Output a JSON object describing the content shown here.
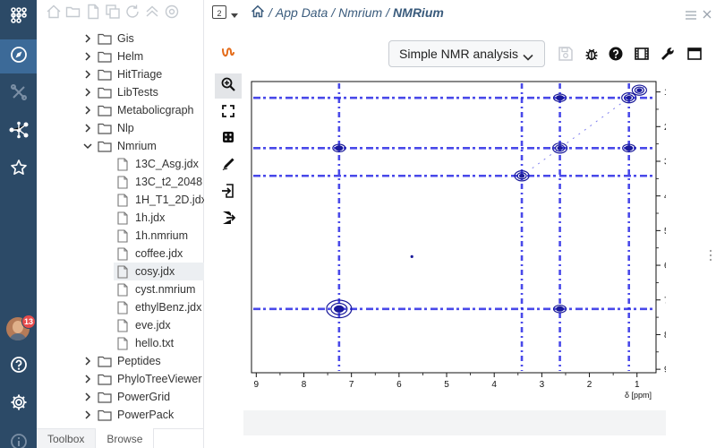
{
  "rail": {
    "items": [
      {
        "icon": "grid-dots-icon",
        "active": false
      },
      {
        "icon": "compass-icon",
        "active": true
      },
      {
        "icon": "tools-icon",
        "active": false
      },
      {
        "icon": "network-icon",
        "active": false
      },
      {
        "icon": "star-icon",
        "active": false
      }
    ],
    "badge": "13",
    "bottom": [
      {
        "icon": "help-icon"
      },
      {
        "icon": "gear-icon"
      },
      {
        "icon": "info-icon"
      }
    ]
  },
  "browse": {
    "tree": [
      {
        "label": "Gis",
        "type": "folder",
        "expanded": false
      },
      {
        "label": "Helm",
        "type": "folder",
        "expanded": false
      },
      {
        "label": "HitTriage",
        "type": "folder",
        "expanded": false
      },
      {
        "label": "LibTests",
        "type": "folder",
        "expanded": false
      },
      {
        "label": "Metabolicgraph",
        "type": "folder",
        "expanded": false
      },
      {
        "label": "Nlp",
        "type": "folder",
        "expanded": false
      },
      {
        "label": "Nmrium",
        "type": "folder",
        "expanded": true
      },
      {
        "label": "13C_Asg.jdx",
        "type": "file"
      },
      {
        "label": "13C_t2_2048",
        "type": "file"
      },
      {
        "label": "1H_T1_2D.jdx",
        "type": "file"
      },
      {
        "label": "1h.jdx",
        "type": "file"
      },
      {
        "label": "1h.nmrium",
        "type": "file"
      },
      {
        "label": "coffee.jdx",
        "type": "file"
      },
      {
        "label": "cosy.jdx",
        "type": "file",
        "selected": true
      },
      {
        "label": "cyst.nmrium",
        "type": "file"
      },
      {
        "label": "ethylBenz.jdx",
        "type": "file"
      },
      {
        "label": "eve.jdx",
        "type": "file"
      },
      {
        "label": "hello.txt",
        "type": "file"
      },
      {
        "label": "Peptides",
        "type": "folder",
        "expanded": false
      },
      {
        "label": "PhyloTreeViewer",
        "type": "folder",
        "expanded": false
      },
      {
        "label": "PowerGrid",
        "type": "folder",
        "expanded": false
      },
      {
        "label": "PowerPack",
        "type": "folder",
        "expanded": false
      }
    ],
    "tabs": [
      {
        "label": "Toolbox",
        "active": false
      },
      {
        "label": "Browse",
        "active": true
      }
    ]
  },
  "header": {
    "view_number": "2",
    "breadcrumb": [
      "App Data",
      "Nmrium",
      "NMRium"
    ]
  },
  "nmrium": {
    "workspace": "Simple NMR analysis",
    "accent": "#e46c1a"
  },
  "chart_data": {
    "type": "heatmap",
    "title": "",
    "xlabel": "δ [ppm]",
    "ylabel": "",
    "xlim": [
      9.1,
      0.6
    ],
    "ylim": [
      0.7,
      9.1
    ],
    "x_ticks": [
      "9",
      "8",
      "7",
      "6",
      "5",
      "4",
      "3",
      "2",
      "1"
    ],
    "y_ticks": [
      "1",
      "2",
      "3",
      "4",
      "5",
      "6",
      "7",
      "8",
      "9"
    ],
    "color": "#2a2ae6",
    "peak_shifts_ppm": [
      7.26,
      3.42,
      2.62,
      1.17
    ],
    "diagonal_peaks": [
      {
        "x": 7.26,
        "y": 7.26
      },
      {
        "x": 3.42,
        "y": 3.42
      },
      {
        "x": 2.62,
        "y": 2.62
      },
      {
        "x": 1.17,
        "y": 1.17
      },
      {
        "x": 0.95,
        "y": 0.95
      }
    ],
    "cross_peaks": [
      {
        "x": 2.62,
        "y": 1.17
      },
      {
        "x": 1.17,
        "y": 2.62
      },
      {
        "x": 7.26,
        "y": 2.62
      },
      {
        "x": 2.62,
        "y": 7.26
      },
      {
        "x": 5.73,
        "y": 5.75
      }
    ]
  }
}
